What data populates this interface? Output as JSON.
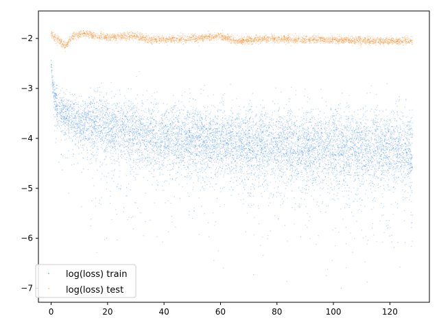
{
  "chart_data": {
    "type": "scatter",
    "xlim": [
      -4.5,
      134
    ],
    "ylim": [
      -7.28,
      -1.45
    ],
    "xticks": [
      0,
      20,
      40,
      60,
      80,
      100,
      120
    ],
    "yticks": [
      -7,
      -6,
      -5,
      -4,
      -3,
      -2
    ],
    "xtick_labels": [
      "0",
      "20",
      "40",
      "60",
      "80",
      "100",
      "120"
    ],
    "ytick_labels": [
      "−7",
      "−6",
      "−5",
      "−4",
      "−3",
      "−2"
    ],
    "grid": false,
    "legend_position": "lower-left",
    "series": [
      {
        "name": "log(loss) train",
        "color": "#0a6cf5",
        "x_range": [
          0,
          128
        ],
        "trend": [
          [
            0,
            -2.45
          ],
          [
            0.5,
            -2.9
          ],
          [
            1,
            -3.1
          ],
          [
            2,
            -3.35
          ],
          [
            5,
            -3.55
          ],
          [
            10,
            -3.65
          ],
          [
            20,
            -3.75
          ],
          [
            40,
            -3.95
          ],
          [
            60,
            -4.05
          ],
          [
            80,
            -4.12
          ],
          [
            100,
            -4.17
          ],
          [
            128,
            -4.2
          ]
        ],
        "spread_sd": [
          [
            0,
            0.05
          ],
          [
            2,
            0.18
          ],
          [
            20,
            0.3
          ],
          [
            60,
            0.35
          ],
          [
            128,
            0.38
          ]
        ],
        "outlier_min": -7.0
      },
      {
        "name": "log(loss) test",
        "color": "#ff7f0e",
        "x_range": [
          0,
          128
        ],
        "trend": [
          [
            0,
            -1.92
          ],
          [
            3,
            -2.05
          ],
          [
            5,
            -2.15
          ],
          [
            8,
            -1.95
          ],
          [
            12,
            -1.9
          ],
          [
            16,
            -1.95
          ],
          [
            20,
            -1.97
          ],
          [
            30,
            -1.95
          ],
          [
            35,
            -2.03
          ],
          [
            45,
            -2.02
          ],
          [
            55,
            -1.98
          ],
          [
            60,
            -1.96
          ],
          [
            66,
            -2.05
          ],
          [
            75,
            -2.0
          ],
          [
            85,
            -2.02
          ],
          [
            100,
            -2.03
          ],
          [
            115,
            -2.05
          ],
          [
            128,
            -2.05
          ]
        ],
        "spread_sd": [
          [
            0,
            0.04
          ],
          [
            128,
            0.04
          ]
        ],
        "outlier_min": -2.35
      }
    ]
  }
}
